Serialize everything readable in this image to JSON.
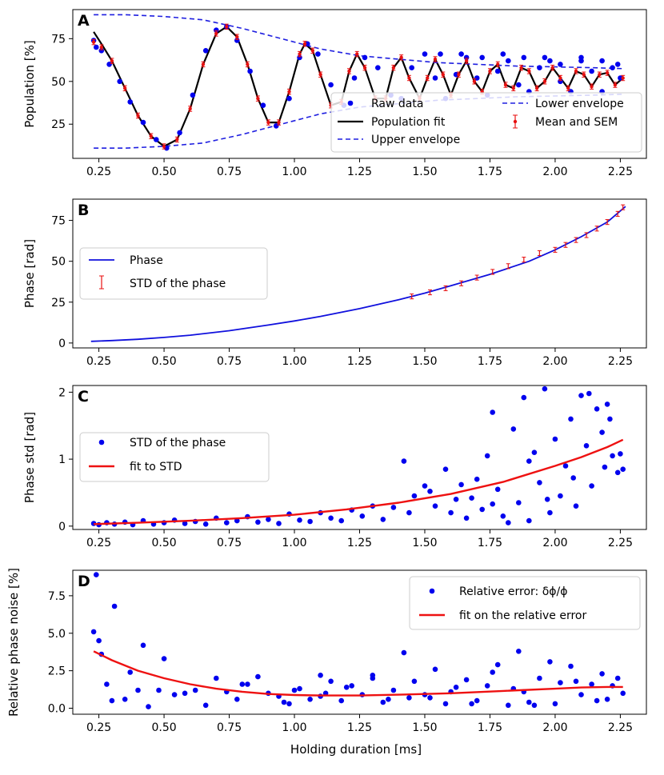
{
  "xlabel": "Holding duration [ms]",
  "colors": {
    "raw": "#0000ee",
    "fit_black": "#000000",
    "envelope": "#1f1fe0",
    "sem": "#e81010",
    "phase": "#1010dd",
    "red_fit": "#ee1111"
  },
  "chart_data": [
    {
      "panel": "A",
      "type": "scatter",
      "ylabel": "Population [%]",
      "xlim": [
        0.15,
        2.35
      ],
      "ylim": [
        5,
        92
      ],
      "xticks": [
        "0.25",
        "0.50",
        "0.75",
        "1.00",
        "1.25",
        "1.50",
        "1.75",
        "2.00",
        "2.25"
      ],
      "yticks": [
        "25",
        "50",
        "75"
      ],
      "legend": {
        "position": "lower-right",
        "entries": [
          "Raw data",
          "Population fit",
          "Upper envelope",
          "Lower envelope",
          "Mean and SEM"
        ]
      },
      "series": [
        {
          "name": "Population fit",
          "kind": "line",
          "x": [
            0.23,
            0.26,
            0.3,
            0.35,
            0.4,
            0.45,
            0.5,
            0.55,
            0.6,
            0.65,
            0.7,
            0.74,
            0.78,
            0.82,
            0.86,
            0.9,
            0.94,
            0.98,
            1.02,
            1.04,
            1.07,
            1.1,
            1.14,
            1.18,
            1.21,
            1.24,
            1.27,
            1.31,
            1.35,
            1.38,
            1.41,
            1.44,
            1.48,
            1.51,
            1.54,
            1.57,
            1.6,
            1.63,
            1.66,
            1.69,
            1.72,
            1.75,
            1.78,
            1.81,
            1.84,
            1.87,
            1.9,
            1.93,
            1.96,
            1.99,
            2.02,
            2.05,
            2.08,
            2.11,
            2.14,
            2.17,
            2.2,
            2.23,
            2.26
          ],
          "y": [
            79,
            72,
            62,
            46,
            30,
            18,
            12,
            16,
            34,
            60,
            78,
            82,
            76,
            60,
            40,
            26,
            26,
            44,
            66,
            72,
            68,
            54,
            36,
            38,
            56,
            66,
            58,
            40,
            40,
            58,
            64,
            52,
            40,
            52,
            63,
            54,
            42,
            54,
            62,
            50,
            44,
            56,
            60,
            48,
            46,
            58,
            56,
            46,
            50,
            58,
            52,
            46,
            56,
            54,
            47,
            54,
            55,
            48,
            52
          ]
        },
        {
          "name": "Upper envelope",
          "kind": "line",
          "x": [
            0.23,
            0.35,
            0.5,
            0.65,
            0.8,
            0.95,
            1.1,
            1.25,
            1.4,
            1.55,
            1.7,
            1.85,
            2.0,
            2.15,
            2.26
          ],
          "y": [
            89,
            89,
            88,
            86,
            81,
            75,
            69,
            65,
            63,
            61,
            60,
            59,
            58.5,
            58,
            57.5
          ]
        },
        {
          "name": "Lower envelope",
          "kind": "line",
          "x": [
            0.23,
            0.35,
            0.5,
            0.65,
            0.8,
            0.95,
            1.1,
            1.25,
            1.4,
            1.55,
            1.7,
            1.85,
            2.0,
            2.15,
            2.26
          ],
          "y": [
            11,
            11,
            12,
            14,
            19,
            25,
            31,
            35,
            37,
            39,
            40,
            41,
            41.5,
            42,
            42.5
          ]
        },
        {
          "name": "Raw data",
          "kind": "points",
          "x": [
            0.23,
            0.24,
            0.26,
            0.29,
            0.33,
            0.37,
            0.42,
            0.47,
            0.51,
            0.56,
            0.61,
            0.66,
            0.7,
            0.74,
            0.78,
            0.83,
            0.88,
            0.93,
            0.98,
            1.02,
            1.05,
            1.09,
            1.14,
            1.19,
            1.23,
            1.27,
            1.32,
            1.37,
            1.41,
            1.45,
            1.5,
            1.54,
            1.58,
            1.62,
            1.66,
            1.7,
            1.74,
            1.78,
            1.82,
            1.86,
            1.9,
            1.94,
            1.98,
            2.02,
            2.06,
            2.1,
            2.14,
            2.18,
            2.22,
            2.25,
            2.02,
            2.1,
            2.18,
            2.24,
            1.96,
            1.88,
            1.8,
            1.72,
            1.64,
            1.56
          ],
          "y": [
            74,
            70,
            68,
            60,
            50,
            38,
            26,
            16,
            11,
            20,
            42,
            68,
            80,
            82,
            74,
            56,
            36,
            24,
            40,
            64,
            72,
            66,
            48,
            36,
            52,
            64,
            58,
            42,
            40,
            58,
            66,
            52,
            40,
            54,
            64,
            52,
            42,
            56,
            62,
            48,
            44,
            58,
            62,
            50,
            44,
            62,
            56,
            44,
            58,
            52,
            60,
            64,
            62,
            60,
            64,
            64,
            66,
            64,
            66,
            66
          ]
        },
        {
          "name": "Mean and SEM",
          "kind": "errorbars",
          "x": [
            0.23,
            0.26,
            0.3,
            0.35,
            0.4,
            0.45,
            0.5,
            0.55,
            0.6,
            0.65,
            0.7,
            0.74,
            0.78,
            0.82,
            0.86,
            0.9,
            0.94,
            0.98,
            1.02,
            1.04,
            1.07,
            1.1,
            1.14,
            1.18,
            1.21,
            1.24,
            1.27,
            1.31,
            1.35,
            1.38,
            1.41,
            1.44,
            1.48,
            1.51,
            1.54,
            1.57,
            1.6,
            1.63,
            1.66,
            1.69,
            1.72,
            1.75,
            1.78,
            1.81,
            1.84,
            1.87,
            1.9,
            1.93,
            1.96,
            1.99,
            2.02,
            2.05,
            2.08,
            2.11,
            2.14,
            2.17,
            2.2,
            2.23,
            2.26
          ],
          "y": [
            73,
            70,
            62,
            46,
            30,
            18,
            12,
            16,
            34,
            60,
            78,
            82,
            76,
            60,
            40,
            26,
            26,
            44,
            66,
            72,
            68,
            54,
            36,
            38,
            56,
            66,
            58,
            40,
            40,
            58,
            64,
            52,
            40,
            52,
            63,
            54,
            42,
            54,
            62,
            50,
            44,
            56,
            60,
            48,
            46,
            58,
            56,
            46,
            50,
            58,
            52,
            46,
            56,
            54,
            47,
            54,
            55,
            48,
            52
          ],
          "err": 1.5
        }
      ]
    },
    {
      "panel": "B",
      "type": "line",
      "ylabel": "Phase [rad]",
      "xlim": [
        0.15,
        2.35
      ],
      "ylim": [
        -3,
        88
      ],
      "xticks": [
        "0.25",
        "0.50",
        "0.75",
        "1.00",
        "1.25",
        "1.50",
        "1.75",
        "2.00",
        "2.25"
      ],
      "yticks": [
        "0",
        "25",
        "50",
        "75"
      ],
      "legend": {
        "position": "center-left",
        "entries": [
          "Phase",
          "STD of the phase"
        ]
      },
      "series": [
        {
          "name": "Phase",
          "kind": "line",
          "x": [
            0.22,
            0.3,
            0.4,
            0.5,
            0.6,
            0.75,
            0.9,
            1.0,
            1.1,
            1.25,
            1.4,
            1.5,
            1.6,
            1.75,
            1.9,
            2.0,
            2.1,
            2.2,
            2.27
          ],
          "y": [
            1,
            1.5,
            2.3,
            3.4,
            4.8,
            7.5,
            11,
            13.5,
            16.3,
            21,
            26.5,
            30.5,
            35,
            42,
            50,
            57,
            65,
            74,
            83.5
          ]
        },
        {
          "name": "STD of the phase",
          "kind": "errorbars",
          "x": [
            1.45,
            1.52,
            1.58,
            1.64,
            1.7,
            1.76,
            1.82,
            1.88,
            1.94,
            2.0,
            2.04,
            2.08,
            2.12,
            2.16,
            2.2,
            2.24,
            2.26
          ],
          "y": [
            28.5,
            31,
            33.5,
            36.5,
            40,
            43.5,
            47,
            51,
            55,
            57,
            60,
            63,
            66,
            70,
            74,
            79,
            83
          ],
          "err": 1.5
        }
      ]
    },
    {
      "panel": "C",
      "type": "scatter",
      "ylabel": "Phase std [rad]",
      "xlim": [
        0.15,
        2.35
      ],
      "ylim": [
        -0.05,
        2.1
      ],
      "xticks": [
        "0.25",
        "0.50",
        "0.75",
        "1.00",
        "1.25",
        "1.50",
        "1.75",
        "2.00",
        "2.25"
      ],
      "yticks": [
        "0",
        "1",
        "2"
      ],
      "legend": {
        "position": "center-left",
        "entries": [
          "STD of the phase",
          "fit to STD"
        ]
      },
      "series": [
        {
          "name": "STD of the phase",
          "kind": "points",
          "x": [
            0.23,
            0.25,
            0.28,
            0.31,
            0.35,
            0.38,
            0.42,
            0.46,
            0.5,
            0.54,
            0.58,
            0.62,
            0.66,
            0.7,
            0.74,
            0.78,
            0.82,
            0.86,
            0.9,
            0.94,
            0.98,
            1.02,
            1.06,
            1.1,
            1.14,
            1.18,
            1.22,
            1.26,
            1.3,
            1.34,
            1.38,
            1.42,
            1.44,
            1.46,
            1.5,
            1.54,
            1.58,
            1.62,
            1.66,
            1.7,
            1.72,
            1.74,
            1.78,
            1.8,
            1.84,
            1.86,
            1.88,
            1.9,
            1.92,
            1.94,
            1.96,
            1.98,
            2.0,
            2.02,
            2.04,
            2.06,
            2.08,
            2.1,
            2.12,
            2.14,
            2.16,
            2.18,
            2.2,
            2.22,
            2.24,
            2.26,
            1.52,
            1.6,
            1.68,
            1.76,
            1.82,
            1.97,
            2.13,
            2.19,
            2.21,
            2.25,
            2.07,
            1.9,
            1.76,
            1.64
          ],
          "y": [
            0.04,
            0.02,
            0.05,
            0.03,
            0.06,
            0.02,
            0.08,
            0.03,
            0.05,
            0.09,
            0.04,
            0.07,
            0.03,
            0.12,
            0.05,
            0.08,
            0.14,
            0.06,
            0.1,
            0.04,
            0.18,
            0.09,
            0.07,
            0.2,
            0.12,
            0.08,
            0.24,
            0.15,
            0.3,
            0.1,
            0.28,
            0.97,
            0.2,
            0.45,
            0.6,
            0.3,
            0.85,
            0.4,
            0.12,
            0.7,
            0.25,
            1.05,
            0.55,
            0.15,
            1.45,
            0.35,
            1.92,
            0.08,
            1.1,
            0.65,
            2.05,
            0.2,
            1.3,
            0.45,
            0.9,
            1.6,
            0.3,
            1.95,
            1.2,
            0.6,
            1.75,
            1.4,
            1.82,
            1.05,
            0.8,
            0.85,
            0.52,
            0.2,
            0.42,
            0.33,
            0.05,
            0.4,
            1.98,
            0.88,
            1.6,
            1.08,
            0.72,
            0.97,
            1.7,
            0.62
          ]
        },
        {
          "name": "fit to STD",
          "kind": "line",
          "x": [
            0.23,
            0.4,
            0.6,
            0.8,
            1.0,
            1.2,
            1.4,
            1.6,
            1.8,
            2.0,
            2.1,
            2.2,
            2.26
          ],
          "y": [
            0.03,
            0.05,
            0.08,
            0.12,
            0.17,
            0.25,
            0.35,
            0.48,
            0.66,
            0.9,
            1.03,
            1.18,
            1.29
          ]
        }
      ]
    },
    {
      "panel": "D",
      "type": "scatter",
      "ylabel": "Relative phase noise [%]",
      "xlim": [
        0.15,
        2.35
      ],
      "ylim": [
        -0.4,
        9.2
      ],
      "xticks": [
        "0.25",
        "0.50",
        "0.75",
        "1.00",
        "1.25",
        "1.50",
        "1.75",
        "2.00",
        "2.25"
      ],
      "yticks": [
        "0.0",
        "2.5",
        "5.0",
        "7.5"
      ],
      "legend": {
        "position": "top-right",
        "entries": [
          "Relative error: δϕ/ϕ",
          "fit on the relative error"
        ]
      },
      "series": [
        {
          "name": "Relative error: δϕ/ϕ",
          "kind": "points",
          "x": [
            0.23,
            0.24,
            0.25,
            0.26,
            0.28,
            0.3,
            0.31,
            0.35,
            0.37,
            0.4,
            0.42,
            0.44,
            0.48,
            0.5,
            0.54,
            0.58,
            0.62,
            0.66,
            0.7,
            0.74,
            0.78,
            0.82,
            0.86,
            0.9,
            0.94,
            0.98,
            1.02,
            1.06,
            1.1,
            1.14,
            1.18,
            1.22,
            1.26,
            1.3,
            1.34,
            1.38,
            1.42,
            1.44,
            1.46,
            1.5,
            1.54,
            1.58,
            1.62,
            1.66,
            1.7,
            1.74,
            1.78,
            1.82,
            1.86,
            1.88,
            1.9,
            1.94,
            1.98,
            2.0,
            2.02,
            2.06,
            2.1,
            2.14,
            2.18,
            2.2,
            2.22,
            2.24,
            2.26,
            1.52,
            1.6,
            1.68,
            1.76,
            1.84,
            1.92,
            2.08,
            2.16,
            1.1,
            1.2,
            0.8,
            0.96,
            1.0,
            1.12,
            1.3,
            1.36
          ],
          "y": [
            5.1,
            8.9,
            4.5,
            3.6,
            1.6,
            0.5,
            6.8,
            0.6,
            2.4,
            1.2,
            4.2,
            0.1,
            1.2,
            3.3,
            0.9,
            1.0,
            1.2,
            0.2,
            2.0,
            1.1,
            0.6,
            1.6,
            2.1,
            1.0,
            0.8,
            0.3,
            1.3,
            0.6,
            2.2,
            1.8,
            0.5,
            1.5,
            0.9,
            2.0,
            0.4,
            1.2,
            3.7,
            0.7,
            1.8,
            0.9,
            2.6,
            0.3,
            1.4,
            1.9,
            0.5,
            1.5,
            2.9,
            0.2,
            3.8,
            1.1,
            0.4,
            2.0,
            3.1,
            0.3,
            1.7,
            2.8,
            0.9,
            1.6,
            2.3,
            0.6,
            1.5,
            2.0,
            1.0,
            0.7,
            1.1,
            0.3,
            2.4,
            1.3,
            0.2,
            1.8,
            0.5,
            0.8,
            1.4,
            1.6,
            0.4,
            1.2,
            1.0,
            2.2,
            0.6
          ]
        },
        {
          "name": "fit on the relative error",
          "kind": "line",
          "x": [
            0.23,
            0.3,
            0.4,
            0.5,
            0.6,
            0.7,
            0.8,
            0.9,
            1.0,
            1.1,
            1.25,
            1.4,
            1.6,
            1.8,
            2.0,
            2.1,
            2.2,
            2.26
          ],
          "y": [
            3.8,
            3.2,
            2.5,
            2.0,
            1.6,
            1.3,
            1.1,
            0.95,
            0.88,
            0.85,
            0.85,
            0.9,
            1.0,
            1.15,
            1.3,
            1.38,
            1.42,
            1.42
          ]
        }
      ]
    }
  ]
}
